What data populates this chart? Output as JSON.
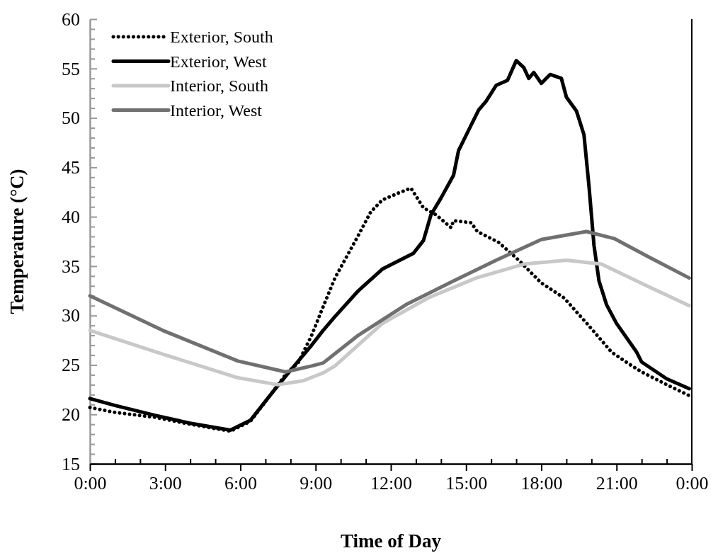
{
  "chart_data": {
    "type": "line",
    "xlabel": "Time of Day",
    "ylabel": "Temperature (°C)",
    "xlim": [
      0,
      24
    ],
    "ylim": [
      15,
      60
    ],
    "xticks": [
      {
        "value": 0,
        "label": "0:00"
      },
      {
        "value": 1,
        "label": null
      },
      {
        "value": 2,
        "label": null
      },
      {
        "value": 3,
        "label": "3:00"
      },
      {
        "value": 4,
        "label": null
      },
      {
        "value": 5,
        "label": null
      },
      {
        "value": 6,
        "label": "6:00"
      },
      {
        "value": 7,
        "label": null
      },
      {
        "value": 8,
        "label": null
      },
      {
        "value": 9,
        "label": "9:00"
      },
      {
        "value": 10,
        "label": null
      },
      {
        "value": 11,
        "label": null
      },
      {
        "value": 12,
        "label": "12:00"
      },
      {
        "value": 13,
        "label": null
      },
      {
        "value": 14,
        "label": null
      },
      {
        "value": 15,
        "label": "15:00"
      },
      {
        "value": 16,
        "label": null
      },
      {
        "value": 17,
        "label": null
      },
      {
        "value": 18,
        "label": "18:00"
      },
      {
        "value": 19,
        "label": null
      },
      {
        "value": 20,
        "label": null
      },
      {
        "value": 21,
        "label": "21:00"
      },
      {
        "value": 22,
        "label": null
      },
      {
        "value": 23,
        "label": null
      },
      {
        "value": 24,
        "label": "0:00"
      }
    ],
    "yticks": [
      15,
      {
        "value": 16,
        "label": null
      },
      {
        "value": 17,
        "label": null
      },
      {
        "value": 18,
        "label": null
      },
      {
        "value": 19,
        "label": null
      },
      20,
      {
        "value": 21,
        "label": null
      },
      {
        "value": 22,
        "label": null
      },
      {
        "value": 23,
        "label": null
      },
      {
        "value": 24,
        "label": null
      },
      25,
      {
        "value": 26,
        "label": null
      },
      {
        "value": 27,
        "label": null
      },
      {
        "value": 28,
        "label": null
      },
      {
        "value": 29,
        "label": null
      },
      30,
      {
        "value": 31,
        "label": null
      },
      {
        "value": 32,
        "label": null
      },
      {
        "value": 33,
        "label": null
      },
      {
        "value": 34,
        "label": null
      },
      35,
      {
        "value": 36,
        "label": null
      },
      {
        "value": 37,
        "label": null
      },
      {
        "value": 38,
        "label": null
      },
      {
        "value": 39,
        "label": null
      },
      40,
      {
        "value": 41,
        "label": null
      },
      {
        "value": 42,
        "label": null
      },
      {
        "value": 43,
        "label": null
      },
      {
        "value": 44,
        "label": null
      },
      45,
      {
        "value": 46,
        "label": null
      },
      {
        "value": 47,
        "label": null
      },
      {
        "value": 48,
        "label": null
      },
      {
        "value": 49,
        "label": null
      },
      50,
      {
        "value": 51,
        "label": null
      },
      {
        "value": 52,
        "label": null
      },
      {
        "value": 53,
        "label": null
      },
      {
        "value": 54,
        "label": null
      },
      55,
      {
        "value": 56,
        "label": null
      },
      {
        "value": 57,
        "label": null
      },
      {
        "value": 58,
        "label": null
      },
      {
        "value": 59,
        "label": null
      },
      60
    ],
    "grid": false,
    "legend": "top left",
    "marker": "none",
    "series": [
      {
        "name": "Exterior, South",
        "color": "#000000",
        "line_style": "dotted",
        "x": [
          0,
          1,
          2.6,
          4,
          5.6,
          6.4,
          7.3,
          7.85,
          8.3,
          8.84,
          9.3,
          9.77,
          10.7,
          11.2,
          11.66,
          12.3,
          12.8,
          13.3,
          13.8,
          14.4,
          14.5,
          15.2,
          15.45,
          16.3,
          17.1,
          18,
          18.9,
          19.85,
          20.8,
          21.5,
          22,
          23,
          23.9
        ],
        "values": [
          20.7,
          20.2,
          19.7,
          19,
          18.3,
          19.3,
          22.3,
          24.2,
          25.2,
          28,
          30.9,
          33.8,
          38.1,
          40.5,
          41.7,
          42.4,
          42.9,
          40.9,
          40.2,
          38.9,
          39.6,
          39.4,
          38.5,
          37.4,
          35.6,
          33.3,
          31.8,
          29.1,
          26.3,
          25.1,
          24.3,
          23,
          21.9
        ]
      },
      {
        "name": "Exterior, West",
        "color": "#000000",
        "line_style": "solid",
        "x": [
          0,
          1,
          2.6,
          4,
          5.6,
          6.4,
          7.3,
          7.85,
          8.84,
          9.3,
          9.77,
          10.7,
          11.66,
          12.9,
          13.3,
          13.6,
          14,
          14.5,
          14.7,
          15.05,
          15.5,
          15.8,
          16.2,
          16.65,
          17,
          17.3,
          17.5,
          17.7,
          18,
          18.35,
          18.8,
          19,
          19.4,
          19.7,
          19.9,
          20.1,
          20.3,
          20.6,
          21,
          21.8,
          22,
          23,
          23.9
        ],
        "values": [
          21.6,
          20.9,
          19.9,
          19.1,
          18.4,
          19.4,
          22.3,
          24,
          27,
          28.5,
          29.9,
          32.5,
          34.7,
          36.3,
          37.6,
          40.2,
          41.9,
          44.2,
          46.7,
          48.5,
          50.8,
          51.7,
          53.3,
          53.8,
          55.8,
          55.1,
          54,
          54.6,
          53.5,
          54.4,
          54,
          52.1,
          50.7,
          48.3,
          43.1,
          37.1,
          33.5,
          31.1,
          29.2,
          26.3,
          25.3,
          23.6,
          22.6
        ]
      },
      {
        "name": "Interior, South",
        "color": "#c8c8c8",
        "line_style": "solid",
        "x": [
          0,
          2.9,
          5.9,
          7.5,
          8.5,
          9.3,
          9.77,
          11.66,
          13.5,
          15.4,
          17.3,
          19,
          20.4,
          22.3,
          23.9
        ],
        "values": [
          28.5,
          26.1,
          23.7,
          23,
          23.4,
          24.2,
          24.9,
          29.2,
          31.8,
          33.8,
          35.2,
          35.6,
          35.2,
          32.9,
          31
        ]
      },
      {
        "name": "Interior, West",
        "color": "#707070",
        "line_style": "solid",
        "x": [
          0,
          2.9,
          5.9,
          7.8,
          8.84,
          9.3,
          10.7,
          12.6,
          14.5,
          16.2,
          18,
          19.8,
          20.9,
          22.3,
          23.9
        ],
        "values": [
          32,
          28.5,
          25.4,
          24.3,
          24.9,
          25.2,
          28,
          31.1,
          33.5,
          35.6,
          37.7,
          38.5,
          37.8,
          35.9,
          33.8
        ]
      }
    ]
  }
}
